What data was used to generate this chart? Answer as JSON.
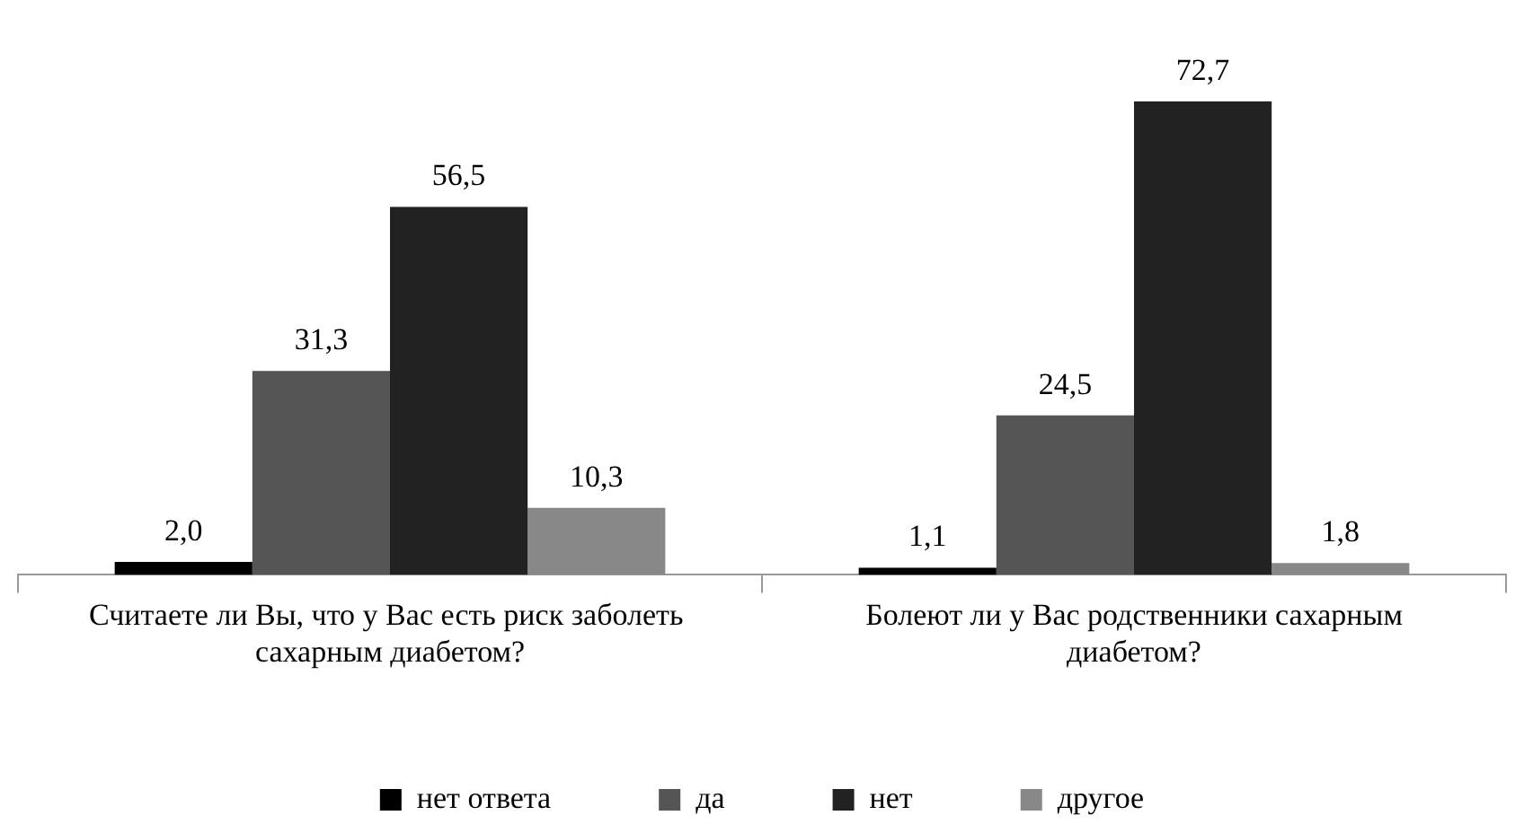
{
  "chart_data": {
    "type": "bar",
    "categories": [
      "Считаете ли Вы, что у Вас есть риск заболеть  сахарным диабетом?",
      "Болеют ли у Вас родственники сахарным диабетом?"
    ],
    "series": [
      {
        "name": "нет ответа",
        "color": "#000000",
        "values": [
          2.0,
          1.1
        ],
        "value_labels": [
          "2,0",
          "1,1"
        ]
      },
      {
        "name": "да",
        "color": "#555555",
        "values": [
          31.3,
          24.5
        ],
        "value_labels": [
          "31,3",
          "24,5"
        ]
      },
      {
        "name": "нет",
        "color": "#222222",
        "values": [
          56.5,
          72.7
        ],
        "value_labels": [
          "56,5",
          "72,7"
        ]
      },
      {
        "name": "другое",
        "color": "#888888",
        "values": [
          10.3,
          1.8
        ],
        "value_labels": [
          "10,3",
          "1,8"
        ]
      }
    ],
    "grid": false,
    "legend": "bottom",
    "tick_labels": "x"
  }
}
